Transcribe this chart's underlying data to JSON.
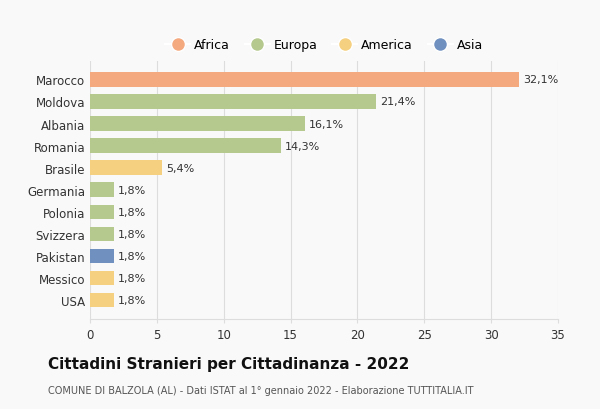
{
  "countries": [
    "Marocco",
    "Moldova",
    "Albania",
    "Romania",
    "Brasile",
    "Germania",
    "Polonia",
    "Svizzera",
    "Pakistan",
    "Messico",
    "USA"
  ],
  "values": [
    32.1,
    21.4,
    16.1,
    14.3,
    5.4,
    1.8,
    1.8,
    1.8,
    1.8,
    1.8,
    1.8
  ],
  "labels": [
    "32,1%",
    "21,4%",
    "16,1%",
    "14,3%",
    "5,4%",
    "1,8%",
    "1,8%",
    "1,8%",
    "1,8%",
    "1,8%",
    "1,8%"
  ],
  "colors": [
    "#F4A97F",
    "#B5C98E",
    "#B5C98E",
    "#B5C98E",
    "#F5D080",
    "#B5C98E",
    "#B5C98E",
    "#B5C98E",
    "#7090C0",
    "#F5D080",
    "#F5D080"
  ],
  "legend_labels": [
    "Africa",
    "Europa",
    "America",
    "Asia"
  ],
  "legend_colors": [
    "#F4A97F",
    "#B5C98E",
    "#F5D080",
    "#7090C0"
  ],
  "title": "Cittadini Stranieri per Cittadinanza - 2022",
  "subtitle": "COMUNE DI BALZOLA (AL) - Dati ISTAT al 1° gennaio 2022 - Elaborazione TUTTITALIA.IT",
  "xlim": [
    0,
    35
  ],
  "xticks": [
    0,
    5,
    10,
    15,
    20,
    25,
    30,
    35
  ],
  "background_color": "#f9f9f9",
  "grid_color": "#dddddd"
}
